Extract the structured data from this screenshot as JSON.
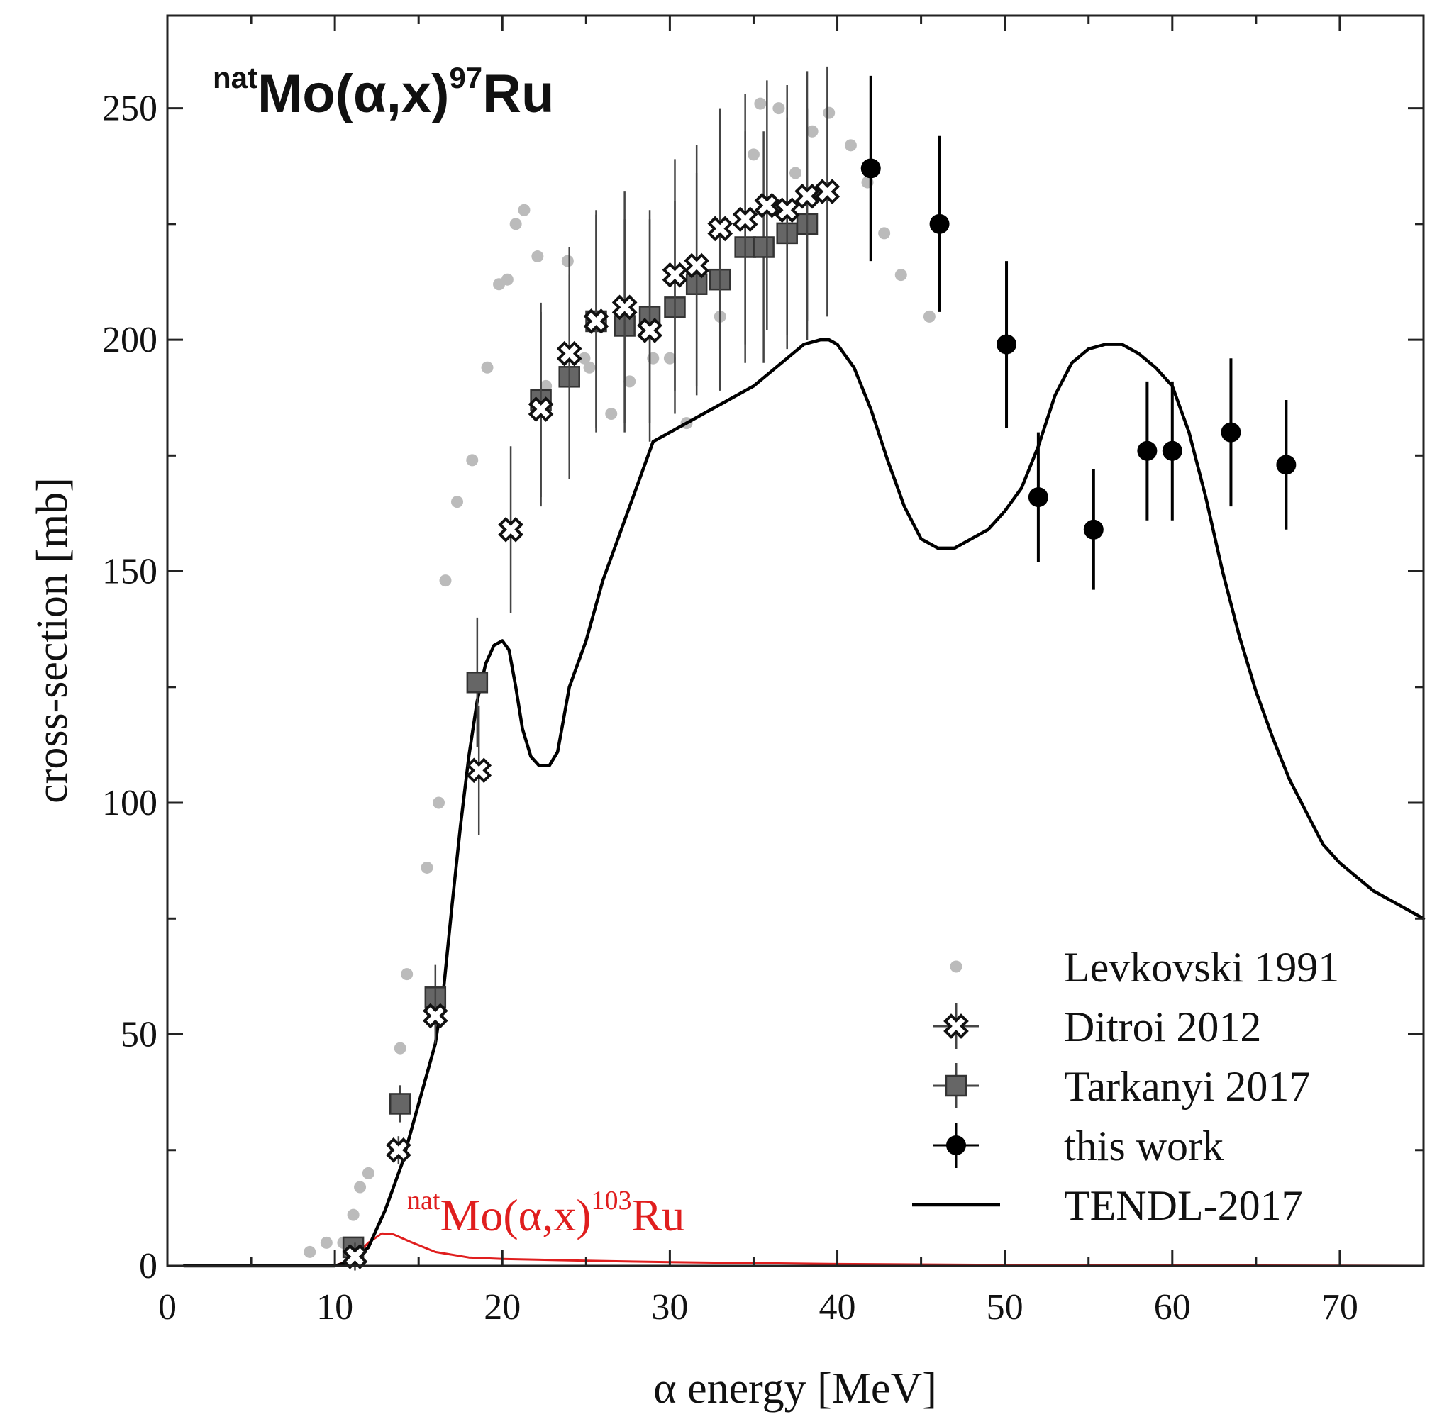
{
  "chart_data": {
    "type": "scatter",
    "title": {
      "prefix_sup": "nat",
      "main": "Mo(α,x)",
      "product_sup": "97",
      "product": "Ru"
    },
    "secondary_label": {
      "prefix_sup": "nat",
      "main": "Mo(α,x)",
      "product_sup": "103",
      "product": "Ru",
      "color": "#e01e1e"
    },
    "xlabel": "α energy [MeV]",
    "ylabel": "cross-section [mb]",
    "xlim": [
      0,
      75
    ],
    "ylim": [
      0,
      270
    ],
    "xticks": [
      0,
      10,
      20,
      30,
      40,
      50,
      60,
      70
    ],
    "yticks": [
      0,
      50,
      100,
      150,
      200,
      250
    ],
    "legend_position": "bottom-right",
    "series": [
      {
        "name": "Levkovski 1991",
        "marker": "small-dot",
        "color": "#bbbbbb",
        "points": [
          [
            8.5,
            3
          ],
          [
            9.5,
            5
          ],
          [
            10.5,
            5
          ],
          [
            11.1,
            11
          ],
          [
            11.5,
            17
          ],
          [
            12.0,
            20
          ],
          [
            13.9,
            47
          ],
          [
            14.3,
            63
          ],
          [
            15.5,
            86
          ],
          [
            16.2,
            100
          ],
          [
            16.6,
            148
          ],
          [
            17.3,
            165
          ],
          [
            18.2,
            174
          ],
          [
            19.1,
            194
          ],
          [
            19.8,
            212
          ],
          [
            20.3,
            213
          ],
          [
            20.8,
            225
          ],
          [
            21.3,
            228
          ],
          [
            22.1,
            218
          ],
          [
            22.6,
            190
          ],
          [
            23.9,
            217
          ],
          [
            24.9,
            196
          ],
          [
            25.2,
            194
          ],
          [
            26.5,
            184
          ],
          [
            27.6,
            191
          ],
          [
            29.0,
            196
          ],
          [
            30.0,
            196
          ],
          [
            31.0,
            182
          ],
          [
            33.0,
            205
          ],
          [
            35.0,
            240
          ],
          [
            35.4,
            251
          ],
          [
            36.5,
            250
          ],
          [
            37.5,
            236
          ],
          [
            38.5,
            245
          ],
          [
            39.5,
            249
          ],
          [
            40.8,
            242
          ],
          [
            41.8,
            234
          ],
          [
            42.8,
            223
          ],
          [
            43.8,
            214
          ],
          [
            45.5,
            205
          ]
        ]
      },
      {
        "name": "Ditroi 2012",
        "marker": "open-x",
        "color": "#111111",
        "points": [
          {
            "x": 11.2,
            "y": 2,
            "err": 3
          },
          {
            "x": 13.8,
            "y": 25,
            "err": 3
          },
          {
            "x": 16.0,
            "y": 54,
            "err": 6
          },
          {
            "x": 18.6,
            "y": 107,
            "err": 14
          },
          {
            "x": 20.5,
            "y": 159,
            "err": 18
          },
          {
            "x": 22.3,
            "y": 185,
            "err": 21
          },
          {
            "x": 24.0,
            "y": 197,
            "err": 23
          },
          {
            "x": 25.6,
            "y": 204,
            "err": 24
          },
          {
            "x": 27.3,
            "y": 207,
            "err": 25
          },
          {
            "x": 28.8,
            "y": 202,
            "err": 24
          },
          {
            "x": 30.3,
            "y": 214,
            "err": 25
          },
          {
            "x": 31.6,
            "y": 216,
            "err": 26
          },
          {
            "x": 33.0,
            "y": 224,
            "err": 26
          },
          {
            "x": 34.5,
            "y": 226,
            "err": 27
          },
          {
            "x": 35.8,
            "y": 229,
            "err": 27
          },
          {
            "x": 37.0,
            "y": 228,
            "err": 27
          },
          {
            "x": 38.2,
            "y": 231,
            "err": 27
          },
          {
            "x": 39.4,
            "y": 232,
            "err": 27
          }
        ]
      },
      {
        "name": "Tarkanyi 2017",
        "marker": "filled-square",
        "color": "#666666",
        "points": [
          {
            "x": 11.1,
            "y": 4,
            "err": 1
          },
          {
            "x": 13.9,
            "y": 35,
            "err": 4
          },
          {
            "x": 16.0,
            "y": 58,
            "err": 7
          },
          {
            "x": 18.5,
            "y": 126,
            "err": 14
          },
          {
            "x": 22.3,
            "y": 187,
            "err": 21
          },
          {
            "x": 24.0,
            "y": 192,
            "err": 22
          },
          {
            "x": 25.6,
            "y": 204,
            "err": 23
          },
          {
            "x": 27.3,
            "y": 203,
            "err": 23
          },
          {
            "x": 28.8,
            "y": 205,
            "err": 23
          },
          {
            "x": 30.3,
            "y": 207,
            "err": 23
          },
          {
            "x": 31.6,
            "y": 212,
            "err": 24
          },
          {
            "x": 33.0,
            "y": 213,
            "err": 24
          },
          {
            "x": 34.5,
            "y": 220,
            "err": 25
          },
          {
            "x": 35.6,
            "y": 220,
            "err": 25
          },
          {
            "x": 37.0,
            "y": 223,
            "err": 25
          },
          {
            "x": 38.2,
            "y": 225,
            "err": 25
          }
        ]
      },
      {
        "name": "this work",
        "marker": "filled-circle",
        "color": "#000000",
        "points": [
          {
            "x": 42.0,
            "y": 237,
            "err": 20
          },
          {
            "x": 46.1,
            "y": 225,
            "err": 19
          },
          {
            "x": 50.1,
            "y": 199,
            "err": 18
          },
          {
            "x": 52.0,
            "y": 166,
            "err": 14
          },
          {
            "x": 55.3,
            "y": 159,
            "err": 13
          },
          {
            "x": 58.5,
            "y": 176,
            "err": 15
          },
          {
            "x": 60.0,
            "y": 176,
            "err": 15
          },
          {
            "x": 63.5,
            "y": 180,
            "err": 16
          },
          {
            "x": 66.8,
            "y": 173,
            "err": 14
          }
        ]
      },
      {
        "name": "TENDL-2017",
        "marker": "line",
        "color": "#000000",
        "points": [
          [
            1,
            0
          ],
          [
            10,
            0
          ],
          [
            11,
            1
          ],
          [
            12,
            4
          ],
          [
            13,
            12
          ],
          [
            14,
            22
          ],
          [
            15,
            35
          ],
          [
            16,
            48
          ],
          [
            16.5,
            60
          ],
          [
            17,
            78
          ],
          [
            17.5,
            95
          ],
          [
            18,
            110
          ],
          [
            18.5,
            122
          ],
          [
            19,
            130
          ],
          [
            19.5,
            134
          ],
          [
            20,
            135
          ],
          [
            20.4,
            133
          ],
          [
            20.8,
            125
          ],
          [
            21.2,
            116
          ],
          [
            21.7,
            110
          ],
          [
            22.2,
            108
          ],
          [
            22.8,
            108
          ],
          [
            23.3,
            111
          ],
          [
            24,
            125
          ],
          [
            25,
            135
          ],
          [
            26,
            148
          ],
          [
            27,
            158
          ],
          [
            28,
            168
          ],
          [
            29,
            178
          ],
          [
            30,
            180
          ],
          [
            31,
            182
          ],
          [
            32,
            184
          ],
          [
            33,
            186
          ],
          [
            34,
            188
          ],
          [
            35,
            190
          ],
          [
            36,
            193
          ],
          [
            37,
            196
          ],
          [
            38,
            199
          ],
          [
            39,
            200
          ],
          [
            39.5,
            200
          ],
          [
            40,
            199
          ],
          [
            41,
            194
          ],
          [
            42,
            185
          ],
          [
            43,
            174
          ],
          [
            44,
            164
          ],
          [
            45,
            157
          ],
          [
            46,
            155
          ],
          [
            47,
            155
          ],
          [
            48,
            157
          ],
          [
            49,
            159
          ],
          [
            50,
            163
          ],
          [
            51,
            168
          ],
          [
            52,
            177
          ],
          [
            53,
            188
          ],
          [
            54,
            195
          ],
          [
            55,
            198
          ],
          [
            56,
            199
          ],
          [
            57,
            199
          ],
          [
            58,
            197
          ],
          [
            59,
            194
          ],
          [
            60,
            190
          ],
          [
            61,
            180
          ],
          [
            62,
            166
          ],
          [
            63,
            150
          ],
          [
            64,
            136
          ],
          [
            65,
            124
          ],
          [
            66,
            114
          ],
          [
            67,
            105
          ],
          [
            68,
            98
          ],
          [
            69,
            91
          ],
          [
            70,
            87
          ],
          [
            71,
            84
          ],
          [
            72,
            81
          ],
          [
            73,
            79
          ],
          [
            74,
            77
          ],
          [
            75,
            75
          ]
        ]
      }
    ],
    "curves": [
      {
        "name": "natMo(α,x)103Ru",
        "color": "#e01e1e",
        "points": [
          [
            1,
            0
          ],
          [
            10,
            0
          ],
          [
            11,
            1.5
          ],
          [
            12,
            5
          ],
          [
            12.8,
            7
          ],
          [
            13.5,
            6.8
          ],
          [
            14.5,
            5.2
          ],
          [
            16,
            3
          ],
          [
            18,
            1.8
          ],
          [
            20,
            1.5
          ],
          [
            25,
            1.1
          ],
          [
            30,
            0.8
          ],
          [
            40,
            0.4
          ],
          [
            50,
            0.2
          ],
          [
            60,
            0.1
          ],
          [
            75,
            0
          ]
        ]
      }
    ]
  }
}
